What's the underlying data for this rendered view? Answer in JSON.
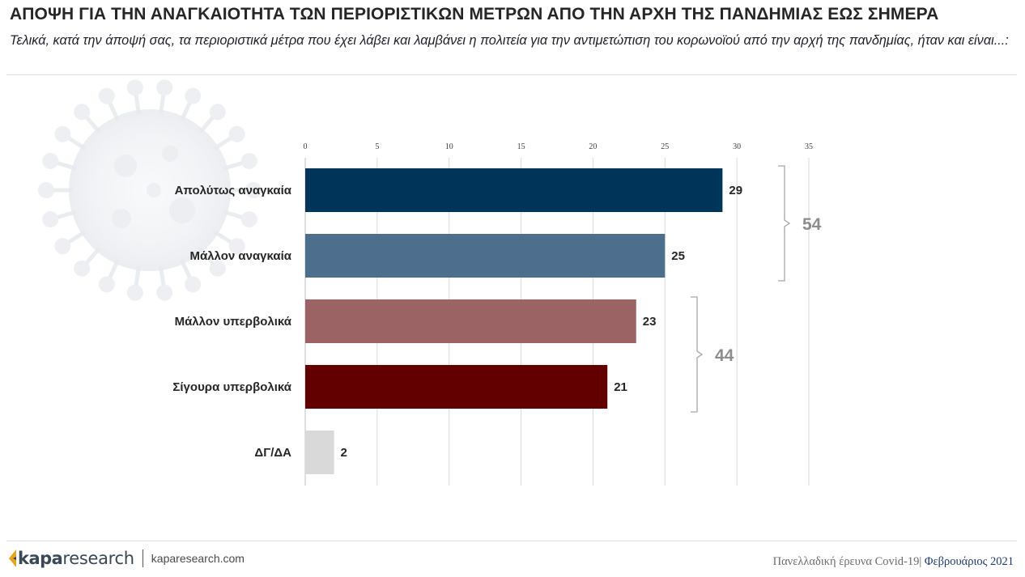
{
  "header": {
    "title": "ΑΠΟΨΗ ΓΙΑ ΤΗΝ ΑΝΑΓΚΑΙΟΤΗΤΑ ΤΩΝ ΠΕΡΙΟΡΙΣΤΙΚΩΝ ΜΕΤΡΩΝ ΑΠΟ ΤΗΝ ΑΡΧΗ ΤΗΣ ΠΑΝΔΗΜΙΑΣ ΕΩΣ ΣΗΜΕΡΑ",
    "subtitle": "Τελικά, κατά την άποψή σας, τα περιοριστικά μέτρα που έχει λάβει και λαμβάνει η πολιτεία για την αντιμετώπιση του κορωνοϊού από την αρχή της πανδημίας, ήταν και είναι...:"
  },
  "chart_data": {
    "type": "bar",
    "orientation": "horizontal",
    "categories": [
      "Απολύτως αναγκαία",
      "Μάλλον αναγκαία",
      "Μάλλον υπερβολικά",
      "Σίγουρα υπερβολικά",
      "ΔΓ/ΔΑ"
    ],
    "values": [
      29,
      25,
      23,
      21,
      2
    ],
    "colors": [
      "#00355a",
      "#4d6e8c",
      "#9b6363",
      "#620000",
      "#d9d9d9"
    ],
    "xlim": [
      0,
      35
    ],
    "xticks": [
      0,
      5,
      10,
      15,
      20,
      25,
      30,
      35
    ],
    "axis_position": "top",
    "grid": true,
    "groups": [
      {
        "members": [
          0,
          1
        ],
        "total": "54"
      },
      {
        "members": [
          2,
          3
        ],
        "total": "44"
      }
    ]
  },
  "footer": {
    "logo_part1": "kapa",
    "logo_part2": "research",
    "url": "kaparesearch.com",
    "survey": "Πανελλαδική έρευνα Covid-19|",
    "month": " Φεβρουάριος 2021"
  },
  "colors": {
    "bracket": "#a6a6a6",
    "group_total": "#8c8c8c",
    "grid": "#d9d9d9"
  }
}
